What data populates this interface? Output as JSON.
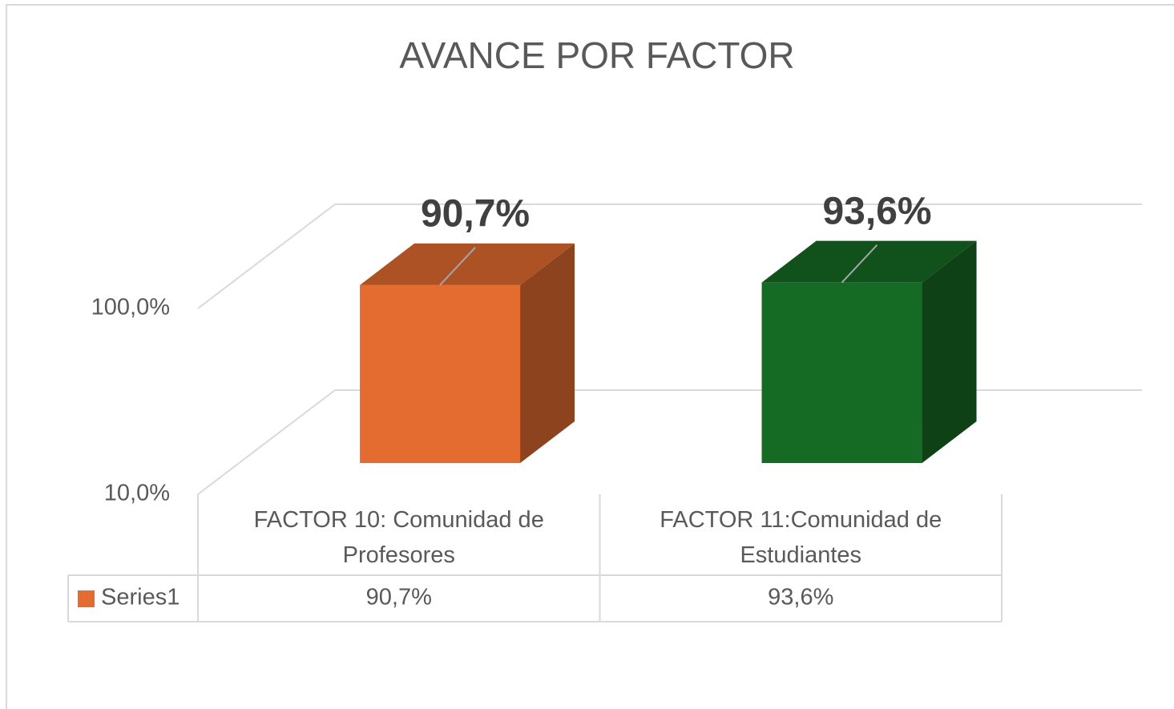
{
  "chart_data": {
    "type": "bar3d",
    "title": "AVANCE POR FACTOR",
    "categories": [
      "FACTOR 10: Comunidad de Profesores",
      "FACTOR 11:Comunidad de Estudiantes"
    ],
    "series": [
      {
        "name": "Series1",
        "color": "#e46c31",
        "values": [
          90.7,
          93.6
        ],
        "value_labels": [
          "90,7%",
          "93,6%"
        ],
        "point_colors": [
          "#e46c31",
          "#166b24"
        ]
      }
    ],
    "ylim": [
      10,
      100
    ],
    "yticks": [
      {
        "value": 10,
        "label": "10,0%"
      },
      {
        "value": 100,
        "label": "100,0%"
      }
    ],
    "log_scale": true,
    "grid": true,
    "data_table": true
  }
}
